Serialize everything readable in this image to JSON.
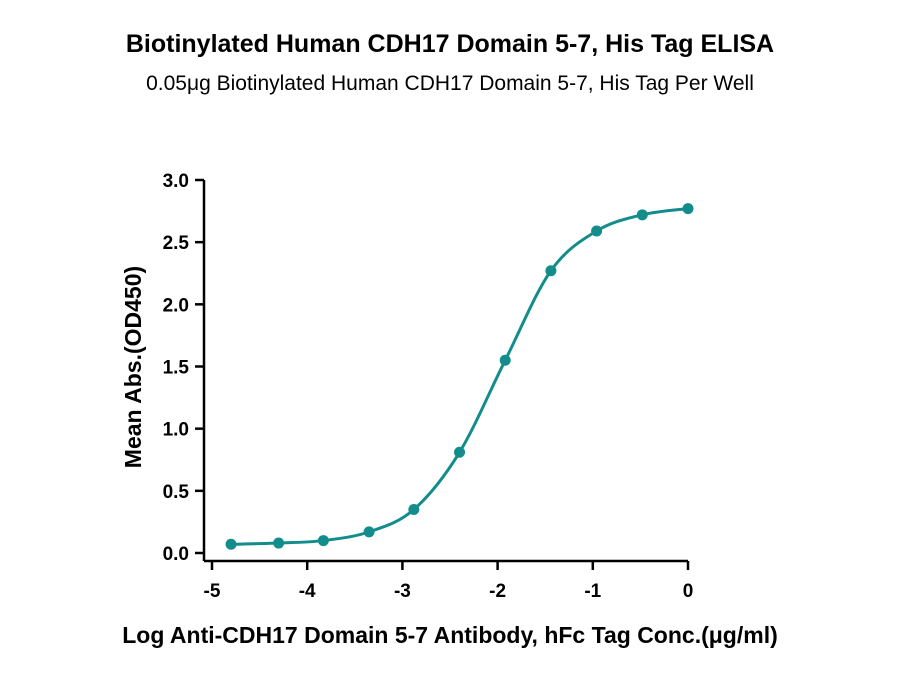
{
  "chart_data": {
    "type": "line",
    "title": "Biotinylated Human CDH17 Domain 5-7, His Tag ELISA",
    "subtitle": "0.05μg Biotinylated Human CDH17 Domain 5-7, His Tag Per Well",
    "xlabel": "Log Anti-CDH17 Domain 5-7 Antibody, hFc Tag Conc.(μg/ml)",
    "ylabel": "Mean Abs.(OD450)",
    "xlim": [
      -5,
      0
    ],
    "ylim": [
      0,
      3.0
    ],
    "x_ticks": [
      "-5",
      "-4",
      "-3",
      "-2",
      "-1",
      "0"
    ],
    "x_tick_values": [
      -5,
      -4,
      -3,
      -2,
      -1,
      0
    ],
    "y_ticks": [
      "0.0",
      "0.5",
      "1.0",
      "1.5",
      "2.0",
      "2.5",
      "3.0"
    ],
    "y_tick_values": [
      0,
      0.5,
      1.0,
      1.5,
      2.0,
      2.5,
      3.0
    ],
    "series": [
      {
        "color": "#138c8c",
        "x": [
          -4.8,
          -4.3,
          -3.83,
          -3.35,
          -2.88,
          -2.4,
          -1.92,
          -1.44,
          -0.96,
          -0.48,
          0.0
        ],
        "y": [
          0.07,
          0.08,
          0.1,
          0.17,
          0.35,
          0.81,
          1.55,
          2.27,
          2.59,
          2.72,
          2.77
        ]
      }
    ],
    "grid": false,
    "legend": "none"
  }
}
